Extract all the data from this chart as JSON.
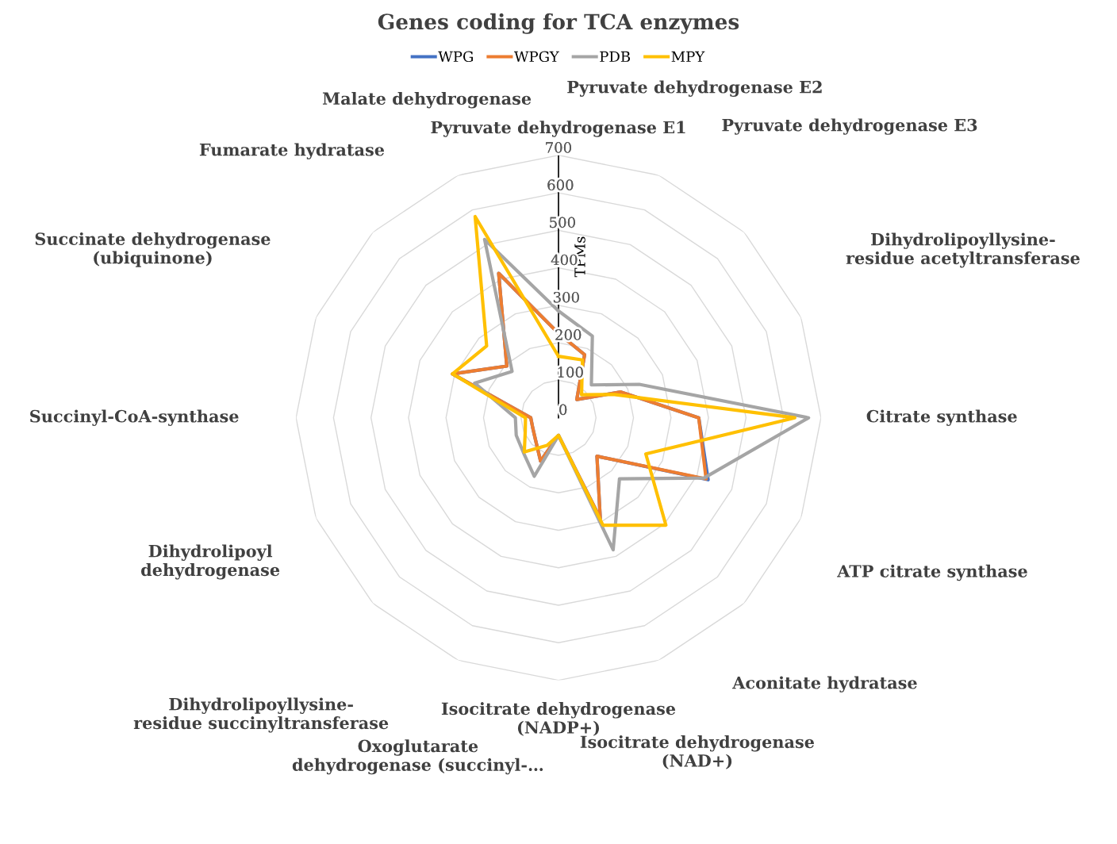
{
  "chart_data": {
    "type": "radar",
    "title": "Genes coding for TCA enzymes",
    "ylabel": "TPMs",
    "categories": [
      "Pyruvate dehydrogenase E1",
      "Pyruvate dehydrogenase E2",
      "Pyruvate dehydrogenase E3",
      "Dihydrolipoyllysine-\nresidue acetyltransferase",
      "Citrate synthase",
      "ATP citrate synthase",
      "Aconitate hydratase",
      "Isocitrate dehydrogenase\n(NAD+)",
      "Isocitrate dehydrogenase\n(NADP+)",
      "Oxoglutarate\ndehydrogenase (succinyl-…",
      "Dihydrolipoyllysine-\nresidue succinyltransferase",
      "Dihydrolipoyl\ndehydrogenase",
      "Succinyl-CoA-synthase",
      "Succinate dehydrogenase\n(ubiquinone)",
      "Fumarate hydratase",
      "Malate dehydrogenase"
    ],
    "series": [
      {
        "name": "WPG",
        "color": "#4472c4",
        "values": [
          225,
          182,
          69,
          180,
          374,
          432,
          145,
          291,
          47,
          125,
          86,
          74,
          74,
          306,
          195,
          417
        ]
      },
      {
        "name": "WPGY",
        "color": "#ed7d31",
        "values": [
          225,
          182,
          69,
          180,
          374,
          426,
          145,
          291,
          47,
          125,
          86,
          74,
          74,
          306,
          195,
          417
        ]
      },
      {
        "name": "PDB",
        "color": "#a5a5a5",
        "values": [
          285,
          236,
          124,
          233,
          667,
          420,
          230,
          381,
          47,
          169,
          132,
          122,
          115,
          242,
          175,
          515
        ]
      },
      {
        "name": "MPY",
        "color": "#ffc000",
        "values": [
          164,
          167,
          87,
          162,
          630,
          252,
          405,
          310,
          47,
          80,
          129,
          96,
          88,
          306,
          271,
          581
        ]
      }
    ],
    "ylim": [
      0,
      700
    ],
    "yticks": [
      0,
      100,
      200,
      300,
      400,
      500,
      600,
      700
    ],
    "grid": true,
    "legend": "top",
    "marker": "none",
    "line_style": "solid"
  }
}
